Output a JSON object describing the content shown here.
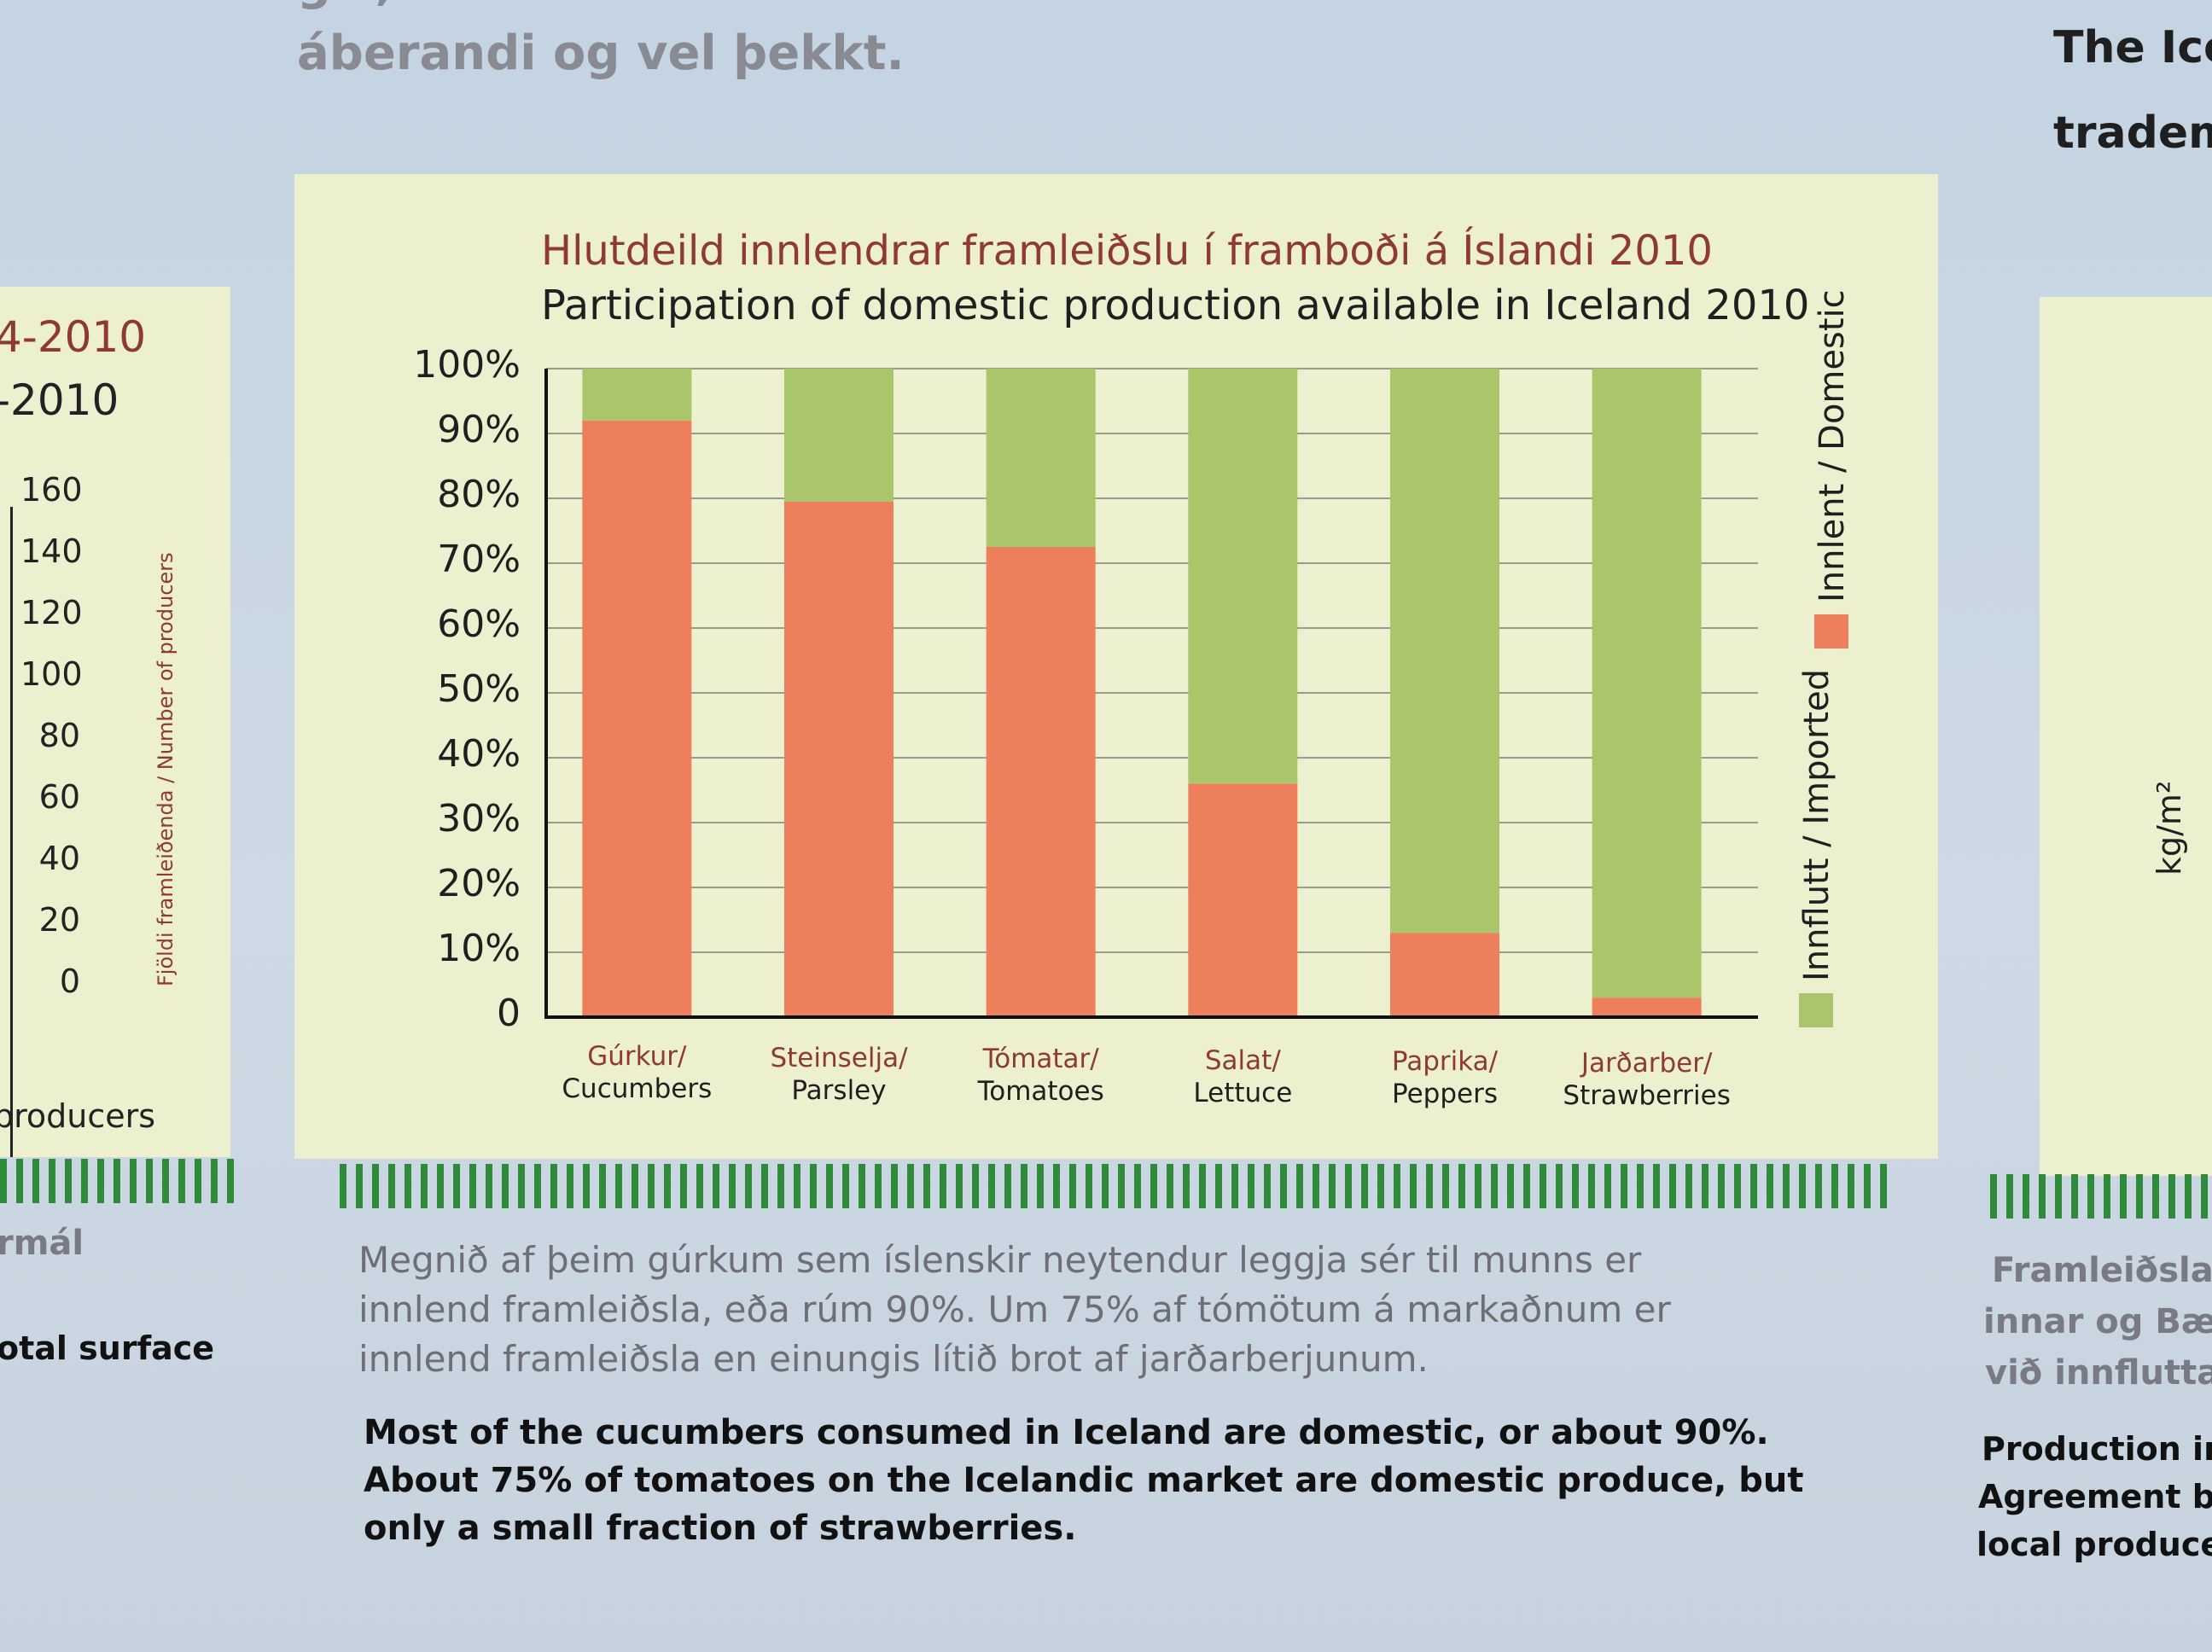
{
  "top_text": {
    "clipped_line": "g v,",
    "line": "áberandi og vel þekkt."
  },
  "left_panel": {
    "title_is": "4-2010",
    "title_en": "-2010",
    "ticks": [
      "160",
      "140",
      "120",
      "100",
      "80",
      "60",
      "40",
      "20",
      "0"
    ],
    "axis_label": "Fjöldi framleiðenda / Number of producers",
    "footer": "producers",
    "caption_is": "rmál",
    "caption_en": "otal surface"
  },
  "right_panel": {
    "top_line1": "The Ice",
    "top_line2": "tradem",
    "axis_unit": "kg/m²",
    "caption_is": [
      "Framleiðsla i",
      "innar og Bær",
      "við innfluttar"
    ],
    "caption_en": [
      "Production in",
      "Agreement be",
      "local producer"
    ]
  },
  "chart_data": {
    "type": "bar",
    "stacked": true,
    "title": "Hlutdeild innlendrar framleiðslu í framboði á Íslandi 2010",
    "subtitle": "Participation of domestic production available in Iceland 2010",
    "categories": [
      {
        "is": "Gúrkur/",
        "en": "Cucumbers"
      },
      {
        "is": "Steinselja/",
        "en": "Parsley"
      },
      {
        "is": "Tómatar/",
        "en": "Tomatoes"
      },
      {
        "is": "Salat/",
        "en": "Lettuce"
      },
      {
        "is": "Paprika/",
        "en": "Peppers"
      },
      {
        "is": "Jarðarber/",
        "en": "Strawberries"
      }
    ],
    "series": [
      {
        "name": "Innlent / Domestic",
        "color": "#ee7f5c",
        "values": [
          92,
          79.5,
          72.5,
          36,
          13,
          3
        ]
      },
      {
        "name": "Innflutt / Imported",
        "color": "#a9c66a",
        "values": [
          8,
          20.5,
          27.5,
          64,
          87,
          97
        ]
      }
    ],
    "yticks": [
      "100%",
      "90%",
      "80%",
      "70%",
      "60%",
      "50%",
      "40%",
      "30%",
      "20%",
      "10%",
      "0"
    ],
    "ylim": [
      0,
      100
    ],
    "grid": true,
    "legend_position": "right-vertical"
  },
  "caption_is": [
    "Megnið af þeim gúrkum sem íslenskir neytendur leggja sér til munns er",
    "innlend framleiðsla, eða rúm 90%. Um 75% af tómötum á markaðnum er",
    "innlend framleiðsla en einungis lítið brot af jarðarberjunum."
  ],
  "caption_en": [
    "Most of the cucumbers consumed in Iceland are domestic, or about 90%.",
    "About 75% of tomatoes on the Icelandic market are domestic produce, but",
    "only a small fraction of strawberries."
  ]
}
